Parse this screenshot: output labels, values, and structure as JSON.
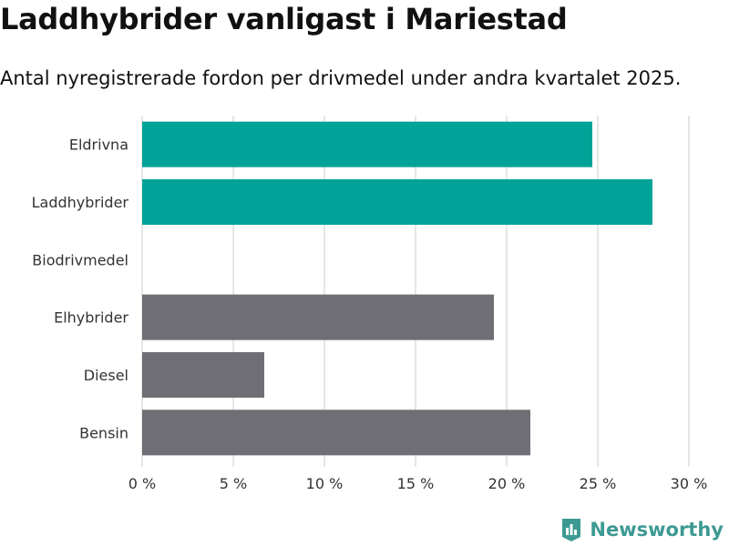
{
  "header": {
    "title": "Laddhybrider vanligast i Mariestad",
    "subtitle": "Antal nyregistrerade fordon per drivmedel under andra kvartalet 2025."
  },
  "brand": {
    "name": "Newsworthy",
    "icon": "newsworthy-logo-icon"
  },
  "colors": {
    "highlight": "#00a398",
    "default": "#6f6e75",
    "grid": "#dddddd"
  },
  "chart_data": {
    "type": "bar",
    "orientation": "horizontal",
    "categories": [
      "Eldrivna",
      "Laddhybrider",
      "Biodrivmedel",
      "Elhybrider",
      "Diesel",
      "Bensin"
    ],
    "values": [
      24.7,
      28.0,
      0,
      19.3,
      6.7,
      21.3
    ],
    "highlighted": [
      "Eldrivna",
      "Laddhybrider"
    ],
    "xlim": [
      0,
      30
    ],
    "xticks": [
      0,
      5,
      10,
      15,
      20,
      25,
      30
    ],
    "tick_labels": [
      "0 %",
      "5 %",
      "10 %",
      "15 %",
      "20 %",
      "25 %",
      "30 %"
    ],
    "xlabel": "",
    "ylabel": "",
    "grid": true
  }
}
